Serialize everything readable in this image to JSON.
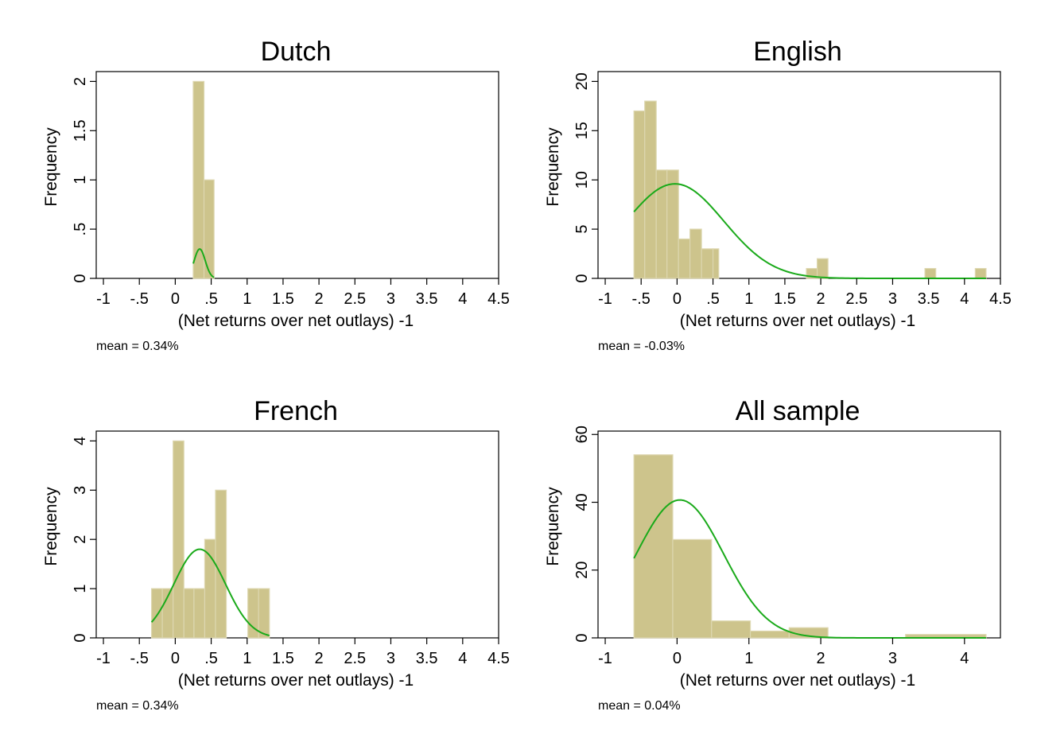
{
  "chart_data": [
    {
      "type": "bar",
      "title": "Dutch",
      "xlabel": "(Net returns over net outlays) -1",
      "ylabel": "Frequency",
      "note": "mean = 0.34%",
      "xlim": [
        -1.1,
        4.5
      ],
      "ylim": [
        0,
        2.1
      ],
      "x_ticks": [
        "-1",
        "-.5",
        "0",
        ".5",
        "1",
        "1.5",
        "2",
        "2.5",
        "3",
        "3.5",
        "4",
        "4.5"
      ],
      "x_tick_values": [
        -1,
        -0.5,
        0,
        0.5,
        1,
        1.5,
        2,
        2.5,
        3,
        3.5,
        4,
        4.5
      ],
      "y_ticks": [
        "0",
        ".5",
        "1",
        "1.5",
        "2"
      ],
      "y_tick_values": [
        0,
        0.5,
        1,
        1.5,
        2
      ],
      "bins": [
        {
          "x0": 0.25,
          "x1": 0.4,
          "value": 2
        },
        {
          "x0": 0.4,
          "x1": 0.54,
          "value": 1
        }
      ],
      "density_curve": {
        "mean": 0.34,
        "sd": 0.077,
        "scale": 0.298,
        "range": [
          0.25,
          0.54
        ]
      },
      "bar_color": "#cdc48c",
      "curve_color": "#1aaa1a"
    },
    {
      "type": "bar",
      "title": "English",
      "xlabel": "(Net returns over net outlays) -1",
      "ylabel": "Frequency",
      "note": "mean = -0.03%",
      "xlim": [
        -1.1,
        4.5
      ],
      "ylim": [
        0,
        21
      ],
      "x_ticks": [
        "-1",
        "-.5",
        "0",
        ".5",
        "1",
        "1.5",
        "2",
        "2.5",
        "3",
        "3.5",
        "4",
        "4.5"
      ],
      "x_tick_values": [
        -1,
        -0.5,
        0,
        0.5,
        1,
        1.5,
        2,
        2.5,
        3,
        3.5,
        4,
        4.5
      ],
      "y_ticks": [
        "0",
        "5",
        "10",
        "15",
        "20"
      ],
      "y_tick_values": [
        0,
        5,
        10,
        15,
        20
      ],
      "bins": [
        {
          "x0": -0.6,
          "x1": -0.45,
          "value": 17
        },
        {
          "x0": -0.45,
          "x1": -0.29,
          "value": 18
        },
        {
          "x0": -0.29,
          "x1": -0.14,
          "value": 11
        },
        {
          "x0": -0.14,
          "x1": 0.02,
          "value": 11
        },
        {
          "x0": 0.02,
          "x1": 0.18,
          "value": 4
        },
        {
          "x0": 0.18,
          "x1": 0.34,
          "value": 5
        },
        {
          "x0": 0.34,
          "x1": 0.5,
          "value": 3
        },
        {
          "x0": 0.5,
          "x1": 0.58,
          "value": 3
        },
        {
          "x0": 1.8,
          "x1": 1.95,
          "value": 1
        },
        {
          "x0": 1.95,
          "x1": 2.1,
          "value": 2
        },
        {
          "x0": 3.45,
          "x1": 3.6,
          "value": 1
        },
        {
          "x0": 4.15,
          "x1": 4.3,
          "value": 1
        }
      ],
      "density_curve": {
        "mean": -0.03,
        "sd": 0.68,
        "scale": 9.6,
        "range": [
          -0.6,
          4.3
        ]
      },
      "bar_color": "#cdc48c",
      "curve_color": "#1aaa1a"
    },
    {
      "type": "bar",
      "title": "French",
      "xlabel": "(Net returns over net outlays) -1",
      "ylabel": "Frequency",
      "note": "mean = 0.34%",
      "xlim": [
        -1.1,
        4.5
      ],
      "ylim": [
        0,
        4.2
      ],
      "x_ticks": [
        "-1",
        "-.5",
        "0",
        ".5",
        "1",
        "1.5",
        "2",
        "2.5",
        "3",
        "3.5",
        "4",
        "4.5"
      ],
      "x_tick_values": [
        -1,
        -0.5,
        0,
        0.5,
        1,
        1.5,
        2,
        2.5,
        3,
        3.5,
        4,
        4.5
      ],
      "y_ticks": [
        "0",
        "1",
        "2",
        "3",
        "4"
      ],
      "y_tick_values": [
        0,
        1,
        2,
        3,
        4
      ],
      "bins": [
        {
          "x0": -0.33,
          "x1": -0.18,
          "value": 1
        },
        {
          "x0": -0.18,
          "x1": -0.03,
          "value": 1
        },
        {
          "x0": -0.03,
          "x1": 0.12,
          "value": 4
        },
        {
          "x0": 0.12,
          "x1": 0.26,
          "value": 1
        },
        {
          "x0": 0.26,
          "x1": 0.41,
          "value": 1
        },
        {
          "x0": 0.41,
          "x1": 0.56,
          "value": 2
        },
        {
          "x0": 0.56,
          "x1": 0.71,
          "value": 3
        },
        {
          "x0": 1.01,
          "x1": 1.16,
          "value": 1
        },
        {
          "x0": 1.16,
          "x1": 1.31,
          "value": 1
        }
      ],
      "density_curve": {
        "mean": 0.34,
        "sd": 0.36,
        "scale": 1.8,
        "range": [
          -0.33,
          1.31
        ]
      },
      "bar_color": "#cdc48c",
      "curve_color": "#1aaa1a"
    },
    {
      "type": "bar",
      "title": "All sample",
      "xlabel": "(Net returns over net outlays) -1",
      "ylabel": "Frequency",
      "note": "mean = 0.04%",
      "xlim": [
        -1.1,
        4.5
      ],
      "ylim": [
        0,
        61
      ],
      "x_ticks": [
        "-1",
        "0",
        "1",
        "2",
        "3",
        "4"
      ],
      "x_tick_values": [
        -1,
        0,
        1,
        2,
        3,
        4
      ],
      "y_ticks": [
        "0",
        "20",
        "40",
        "60"
      ],
      "y_tick_values": [
        0,
        20,
        40,
        60
      ],
      "bins": [
        {
          "x0": -0.6,
          "x1": -0.06,
          "value": 54
        },
        {
          "x0": -0.06,
          "x1": 0.48,
          "value": 29
        },
        {
          "x0": 0.48,
          "x1": 1.02,
          "value": 5
        },
        {
          "x0": 1.02,
          "x1": 1.56,
          "value": 2
        },
        {
          "x0": 1.56,
          "x1": 2.1,
          "value": 3
        },
        {
          "x0": 3.18,
          "x1": 4.3,
          "value": 1
        }
      ],
      "density_curve": {
        "mean": 0.04,
        "sd": 0.61,
        "scale": 40.7,
        "range": [
          -0.6,
          4.3
        ]
      },
      "bar_color": "#cdc48c",
      "curve_color": "#1aaa1a"
    }
  ]
}
